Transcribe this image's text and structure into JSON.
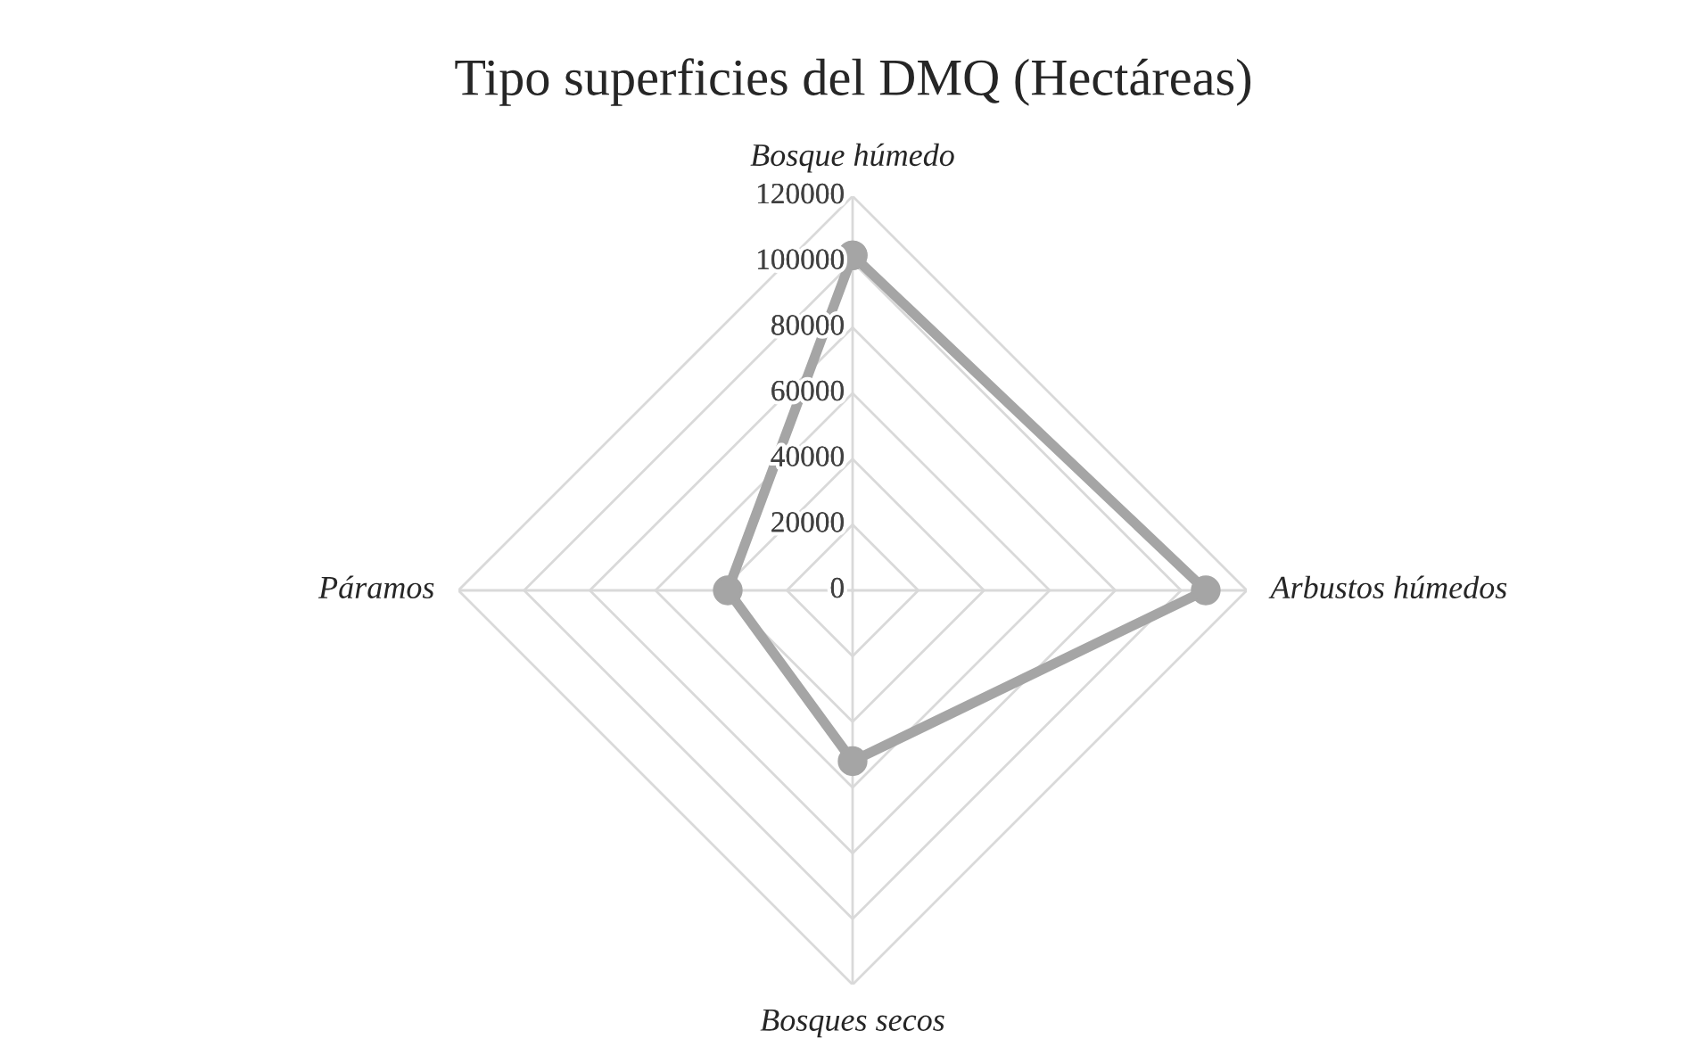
{
  "chart_data": {
    "type": "radar",
    "title": "Tipo superficies del DMQ (Hectáreas)",
    "categories": [
      "Bosque húmedo",
      "Arbustos húmedos",
      "Bosques secos",
      "Páramos"
    ],
    "series": [
      {
        "color": "#a5a5a5",
        "values": [
          102000,
          107500,
          52000,
          38000
        ]
      }
    ],
    "ylim": [
      0,
      120000
    ],
    "yticks": [
      0,
      20000,
      40000,
      60000,
      80000,
      100000,
      120000
    ],
    "grid": true,
    "marker": "circle",
    "legend": false
  }
}
